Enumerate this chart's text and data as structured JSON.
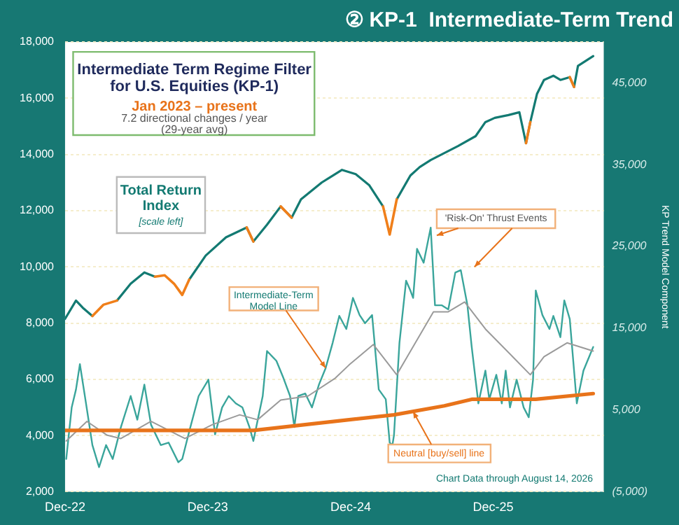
{
  "chart_data": {
    "type": "line",
    "title": "② KP-1  Intermediate-Term Trend",
    "y2label": "KP Trend Model Component",
    "annotations": [
      "Intermediate Term Regime Filter for U.S. Equities (KP-1)",
      "Jan 2023 – present",
      "7.2 directional changes / year",
      "(29-year avg)",
      "Total Return Index",
      "[scale left]",
      {
        "text": "Intermediate-Term Model Line",
        "x": "2024-09-28",
        "y": 6400
      },
      "'Risk-On' Thrust Events",
      {
        "text": "Neutral [buy/sell] line",
        "x": "2025-05-10",
        "y": 4850
      },
      "Chart Data through August 14, 2026"
    ],
    "xlim": [
      "2022-12-01",
      "2026-09-10"
    ],
    "xticks": [
      {
        "value": "2022-12-01",
        "label": "Dec-22"
      },
      {
        "value": "2023-12-01",
        "label": "Dec-23"
      },
      {
        "value": "2024-12-01",
        "label": "Dec-24"
      },
      {
        "value": "2025-12-01",
        "label": "Dec-25"
      }
    ],
    "ylim": [
      2000,
      18000
    ],
    "yticks": [
      {
        "value": 2000,
        "label": "2,000"
      },
      {
        "value": 4000,
        "label": "4,000"
      },
      {
        "value": 6000,
        "label": "6,000"
      },
      {
        "value": 8000,
        "label": "8,000"
      },
      {
        "value": 10000,
        "label": "10,000"
      },
      {
        "value": 12000,
        "label": "12,000"
      },
      {
        "value": 14000,
        "label": "14,000"
      },
      {
        "value": 16000,
        "label": "16,000"
      },
      {
        "value": 18000,
        "label": "18,000"
      }
    ],
    "y2lim": [
      -5000,
      50000
    ],
    "y2ticks": [
      {
        "value": -5000,
        "label": "(5,000)"
      },
      {
        "value": 5000,
        "label": "5,000"
      },
      {
        "value": 15000,
        "label": "15,000"
      },
      {
        "value": 25000,
        "label": "25,000"
      },
      {
        "value": 35000,
        "label": "35,000"
      },
      {
        "value": 45000,
        "label": "45,000"
      }
    ],
    "x": [
      "2022-12-01",
      "2022-12-29",
      "2023-01-15",
      "2023-02-09",
      "2023-03-09",
      "2023-04-13",
      "2023-05-18",
      "2023-06-22",
      "2023-07-19",
      "2023-08-13",
      "2023-09-06",
      "2023-09-27",
      "2023-10-15",
      "2023-11-26",
      "2024-01-17",
      "2024-03-10",
      "2024-03-27",
      "2024-05-01",
      "2024-06-05",
      "2024-07-03",
      "2024-07-27",
      "2024-09-18",
      "2024-11-09",
      "2024-12-14",
      "2025-01-18",
      "2025-02-22",
      "2025-03-11",
      "2025-03-29",
      "2025-05-03",
      "2025-05-27",
      "2025-06-24",
      "2025-07-29",
      "2025-09-02",
      "2025-10-17",
      "2025-11-11",
      "2025-12-05",
      "2026-01-09",
      "2026-02-06",
      "2026-02-23",
      "2026-03-06",
      "2026-03-23",
      "2026-04-10",
      "2026-05-04",
      "2026-05-22",
      "2026-06-15",
      "2026-06-26",
      "2026-07-06",
      "2026-08-14"
    ],
    "grid": "y",
    "legend": false,
    "marker": "none",
    "line_style": "solid",
    "series": [
      {
        "color": "#137a72",
        "axis": "y",
        "values": [
          8150,
          8800,
          8550,
          8250,
          null,
          8800,
          9400,
          9800,
          9650,
          null,
          null,
          null,
          9550,
          10400,
          11050,
          11400,
          10900,
          11500,
          12150,
          11750,
          12400,
          13000,
          13450,
          13300,
          12900,
          12150,
          null,
          12400,
          13250,
          13550,
          13800,
          14050,
          14300,
          14650,
          15150,
          15300,
          15400,
          15500,
          14400,
          15150,
          16150,
          16650,
          16800,
          16650,
          16750,
          16400,
          17150,
          17500
        ]
      },
      {
        "color": "#f07f1a",
        "axis": "y",
        "values": [
          null,
          null,
          null,
          8250,
          8650,
          8800,
          null,
          null,
          9650,
          9700,
          9400,
          9000,
          9550,
          null,
          null,
          11400,
          10900,
          null,
          12150,
          11750,
          null,
          null,
          null,
          null,
          null,
          12150,
          11150,
          12400,
          null,
          null,
          null,
          null,
          null,
          null,
          null,
          null,
          null,
          null,
          14400,
          15150,
          null,
          null,
          null,
          null,
          16750,
          16400,
          null,
          null
        ]
      },
      {
        "color": "#3aa59b",
        "axis": "y2",
        "x": [
          "2022-12-04",
          "2022-12-18",
          "2022-12-29",
          "2023-01-08",
          "2023-01-22",
          "2023-02-09",
          "2023-02-26",
          "2023-03-16",
          "2023-04-02",
          "2023-04-23",
          "2023-05-18",
          "2023-06-04",
          "2023-06-22",
          "2023-07-09",
          "2023-08-03",
          "2023-08-23",
          "2023-09-17",
          "2023-09-27",
          "2023-10-15",
          "2023-11-08",
          "2023-12-03",
          "2023-12-20",
          "2024-01-07",
          "2024-01-24",
          "2024-02-11",
          "2024-02-28",
          "2024-03-17",
          "2024-03-27",
          "2024-04-20",
          "2024-05-01",
          "2024-05-25",
          "2024-06-12",
          "2024-06-29",
          "2024-07-10",
          "2024-07-20",
          "2024-08-07",
          "2024-08-24",
          "2024-09-11",
          "2024-09-28",
          "2024-10-16",
          "2024-11-02",
          "2024-11-20",
          "2024-12-07",
          "2024-12-24",
          "2025-01-07",
          "2025-01-25",
          "2025-02-11",
          "2025-03-01",
          "2025-03-11",
          "2025-03-18",
          "2025-03-22",
          "2025-04-05",
          "2025-04-22",
          "2025-05-03",
          "2025-05-10",
          "2025-05-20",
          "2025-06-06",
          "2025-06-24",
          "2025-07-05",
          "2025-07-22",
          "2025-08-08",
          "2025-08-26",
          "2025-09-09",
          "2025-09-26",
          "2025-10-07",
          "2025-10-24",
          "2025-11-11",
          "2025-11-21",
          "2025-12-09",
          "2025-12-23",
          "2026-01-02",
          "2026-01-13",
          "2026-01-30",
          "2026-02-17",
          "2026-03-02",
          "2026-03-13",
          "2026-03-20",
          "2026-04-06",
          "2026-04-24",
          "2026-05-04",
          "2026-05-22",
          "2026-06-01",
          "2026-06-15",
          "2026-07-03",
          "2026-07-20",
          "2026-08-14"
        ],
        "values": [
          -1000,
          5300,
          7500,
          10600,
          6300,
          700,
          -2000,
          700,
          -1000,
          2900,
          6700,
          3800,
          8100,
          3200,
          700,
          1000,
          -1400,
          -1000,
          2400,
          6700,
          8700,
          2000,
          5300,
          6700,
          5800,
          5300,
          2900,
          1200,
          6700,
          12200,
          11000,
          8900,
          6700,
          2900,
          6700,
          7000,
          5300,
          8100,
          10100,
          13200,
          16500,
          14900,
          18700,
          16600,
          15600,
          16600,
          7500,
          6300,
          1000,
          700,
          1900,
          13200,
          20800,
          19600,
          18700,
          24700,
          23000,
          27300,
          17800,
          17800,
          17300,
          21800,
          22100,
          17800,
          12700,
          5800,
          9800,
          6300,
          9300,
          5800,
          9800,
          5300,
          8700,
          5300,
          4100,
          8700,
          19600,
          16600,
          14900,
          16500,
          13900,
          18400,
          16100,
          5800,
          9800,
          12700
        ]
      },
      {
        "color": "#9a9a9a",
        "axis": "y2",
        "x": [
          "2022-12-04",
          "2023-01-26",
          "2023-03-19",
          "2023-04-23",
          "2023-07-09",
          "2023-10-04",
          "2023-12-13",
          "2024-02-21",
          "2024-04-07",
          "2024-06-05",
          "2024-08-14",
          "2024-10-23",
          "2024-11-27",
          "2025-01-28",
          "2025-03-29",
          "2025-07-01",
          "2025-08-08",
          "2025-09-19",
          "2025-11-11",
          "2026-01-20",
          "2026-03-06",
          "2026-04-10",
          "2026-06-08",
          "2026-08-14"
        ],
        "values": [
          1200,
          3600,
          1900,
          1500,
          3600,
          1500,
          3200,
          4400,
          3800,
          6200,
          6700,
          8900,
          10500,
          13000,
          9300,
          17000,
          17000,
          18200,
          14900,
          11500,
          9300,
          11500,
          13200,
          12200
        ]
      },
      {
        "color": "#e8731a",
        "axis": "y2",
        "x": [
          "2022-12-01",
          "2024-03-27",
          "2024-11-27",
          "2025-03-22",
          "2025-07-29",
          "2025-10-07",
          "2026-03-20",
          "2026-08-14"
        ],
        "values": [
          2500,
          2500,
          3800,
          4400,
          5500,
          6300,
          6300,
          7000
        ]
      }
    ]
  }
}
